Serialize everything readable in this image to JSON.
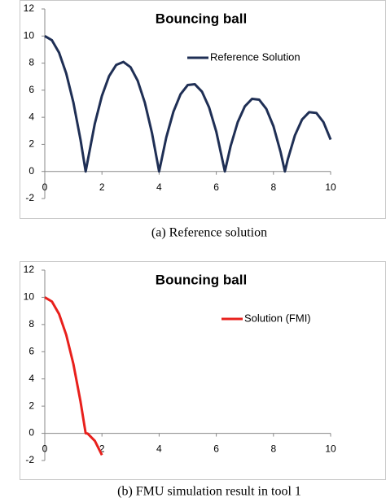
{
  "chart_data": [
    {
      "type": "line",
      "title": "Bouncing ball",
      "caption": "(a) Reference solution",
      "x": [
        0,
        0.25,
        0.5,
        0.75,
        1.0,
        1.25,
        1.43,
        1.75,
        2.0,
        2.25,
        2.5,
        2.75,
        3.0,
        3.25,
        3.5,
        3.75,
        4.0,
        4.25,
        4.5,
        4.75,
        5.0,
        5.25,
        5.5,
        5.75,
        6.0,
        6.3,
        6.5,
        6.75,
        7.0,
        7.25,
        7.5,
        7.75,
        8.0,
        8.25,
        8.4,
        8.5,
        8.75,
        9.0,
        9.25,
        9.5,
        9.75,
        10
      ],
      "series": [
        {
          "name": "Reference Solution",
          "color": "#1f2f55",
          "values": [
            10,
            9.69,
            8.77,
            7.24,
            5.1,
            2.34,
            0,
            3.53,
            5.59,
            7.04,
            7.87,
            8.09,
            7.7,
            6.7,
            5.08,
            2.84,
            0,
            2.51,
            4.41,
            5.7,
            6.38,
            6.44,
            5.89,
            4.72,
            2.94,
            0,
            1.86,
            3.64,
            4.81,
            5.36,
            5.3,
            4.62,
            3.34,
            1.43,
            0,
            0.88,
            2.66,
            3.83,
            4.38,
            4.32,
            3.64,
            2.35
          ]
        }
      ],
      "xlim": [
        0,
        10
      ],
      "xticks": [
        0,
        2,
        4,
        6,
        8,
        10
      ],
      "ylim": [
        -2,
        12
      ],
      "yticks": [
        -2,
        0,
        2,
        4,
        6,
        8,
        10,
        12
      ],
      "legend": "upper right"
    },
    {
      "type": "line",
      "title": "Bouncing ball",
      "caption": "(b) FMU simulation result in tool 1",
      "x": [
        0,
        0.25,
        0.5,
        0.75,
        1.0,
        1.25,
        1.43,
        1.5,
        1.75,
        2.0
      ],
      "series": [
        {
          "name": "Solution (FMI)",
          "color": "#e8201c",
          "values": [
            10,
            9.69,
            8.77,
            7.24,
            5.1,
            2.34,
            0,
            -0.02,
            -0.55,
            -1.6
          ]
        }
      ],
      "xlim": [
        0,
        10
      ],
      "xticks": [
        0,
        2,
        4,
        6,
        8,
        10
      ],
      "ylim": [
        -2,
        12
      ],
      "yticks": [
        -2,
        0,
        2,
        4,
        6,
        8,
        10,
        12
      ],
      "legend": "upper right"
    }
  ]
}
